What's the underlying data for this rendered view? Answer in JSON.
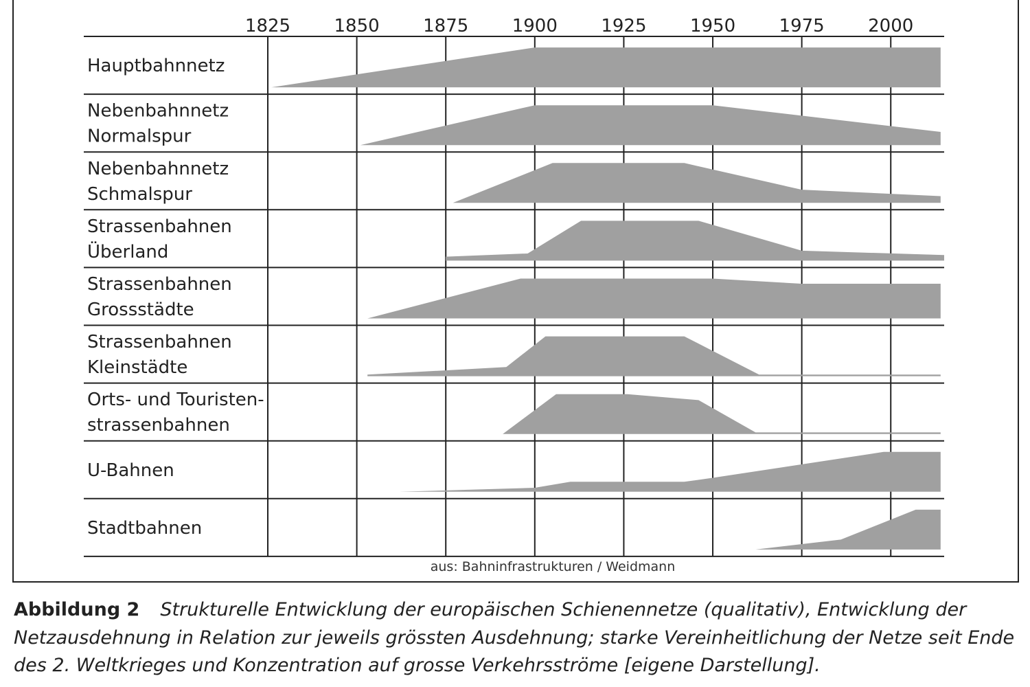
{
  "chart_data": {
    "type": "area-rows",
    "xlim": [
      1825,
      2015
    ],
    "xticks": [
      1825,
      1850,
      1875,
      1900,
      1925,
      1950,
      1975,
      2000
    ],
    "color": "#a0a0a0",
    "source": "aus: Bahninfrastrukturen / Weidmann",
    "series": [
      {
        "name_lines": [
          "Hauptbahnnetz"
        ],
        "x": [
          1826,
          1900,
          2014
        ],
        "values": [
          0,
          100,
          100
        ]
      },
      {
        "name_lines": [
          "Nebenbahnnetz",
          "Normalspur"
        ],
        "x": [
          1851,
          1900,
          1950,
          2014
        ],
        "values": [
          0,
          100,
          100,
          33
        ]
      },
      {
        "name_lines": [
          "Nebenbahnnetz",
          "Schmalspur"
        ],
        "x": [
          1877,
          1905,
          1942,
          1975,
          2014
        ],
        "values": [
          0,
          100,
          100,
          33,
          17
        ]
      },
      {
        "name_lines": [
          "Strassenbahnen",
          "Überland"
        ],
        "x": [
          1875,
          1898,
          1913,
          1946,
          1975,
          2015
        ],
        "values": [
          10,
          18,
          100,
          100,
          25,
          14
        ]
      },
      {
        "name_lines": [
          "Strassenbahnen",
          "Grossstädte"
        ],
        "x": [
          1853,
          1896,
          1950,
          1975,
          2014
        ],
        "values": [
          0,
          100,
          100,
          87,
          87
        ]
      },
      {
        "name_lines": [
          "Strassenbahnen",
          "Kleinstädte"
        ],
        "x": [
          1853,
          1892,
          1903,
          1942,
          1963,
          2014
        ],
        "values": [
          4,
          23,
          100,
          100,
          4,
          4
        ]
      },
      {
        "name_lines": [
          "Orts- und Touristen-",
          "strassenbahnen"
        ],
        "x": [
          1891,
          1906,
          1926,
          1946,
          1962,
          2014
        ],
        "values": [
          0,
          100,
          100,
          85,
          4,
          4
        ]
      },
      {
        "name_lines": [
          "U-Bahnen"
        ],
        "x": [
          1862,
          1900,
          1910,
          1942,
          1950,
          1998,
          2014
        ],
        "values": [
          0,
          10,
          25,
          25,
          35,
          100,
          100
        ]
      },
      {
        "name_lines": [
          "Stadtbahnen"
        ],
        "x": [
          1962,
          1986,
          2007,
          2014
        ],
        "values": [
          0,
          25,
          100,
          100
        ]
      }
    ]
  },
  "caption": {
    "label": "Abbildung 2",
    "lines": [
      "Strukturelle Entwicklung der europäischen Schienennetze (qualitativ), Entwicklung der",
      "Netzausdehnung in Relation zur jeweils grössten Ausdehnung; starke Vereinheitlichung der Netze seit Ende",
      "des 2. Weltkrieges und Konzentration auf grosse Verkehrsströme [eigene Darstellung]."
    ]
  }
}
